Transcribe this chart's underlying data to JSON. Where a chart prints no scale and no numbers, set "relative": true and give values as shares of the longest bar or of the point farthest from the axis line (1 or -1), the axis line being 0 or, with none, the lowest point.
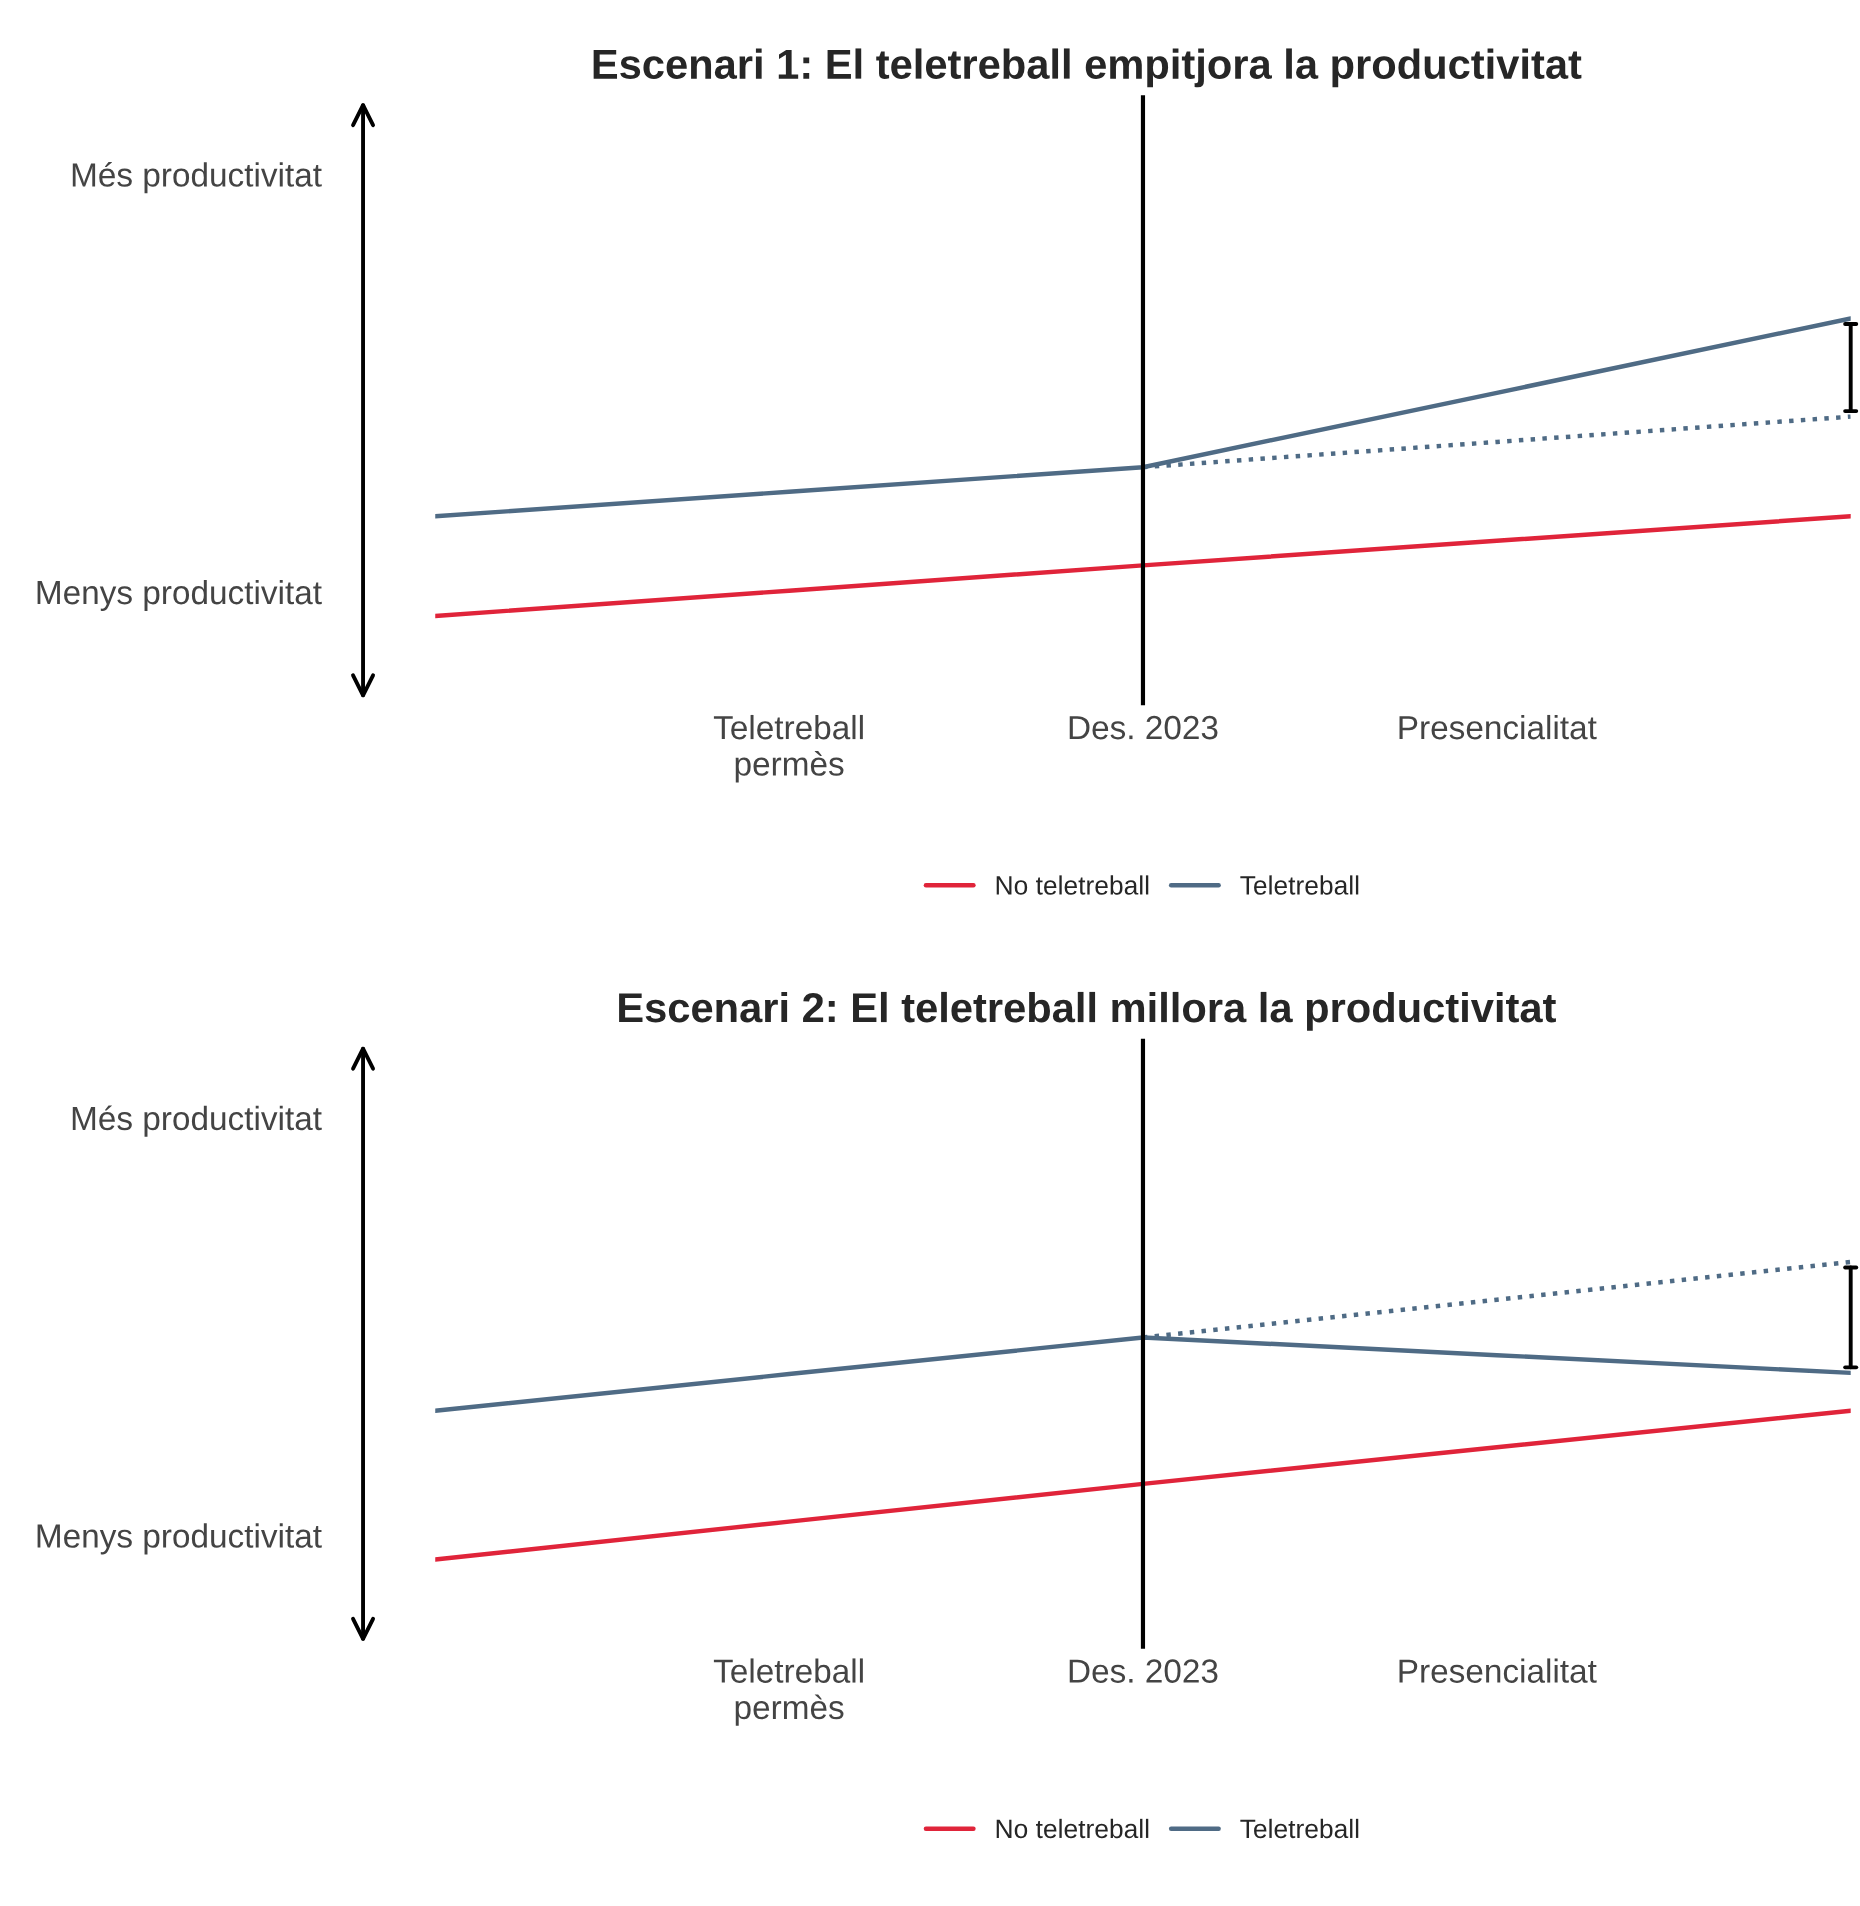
{
  "chart_data": [
    {
      "type": "line",
      "title": "Escenari 1: El teletreball empitjora la productivitat",
      "relative": true,
      "categories": [
        null,
        "Teletreball\npermès",
        "Des. 2023",
        "Presencialitat",
        null
      ],
      "grid": false,
      "legend": "bottom",
      "series": [
        {
          "name": "No teletreball",
          "color": "#e0243a",
          "values": [
            0,
            0.085,
            0.17,
            0.2525,
            0.335
          ]
        },
        {
          "name": "Teletreball",
          "color": "#4f6b85",
          "values": [
            0.335,
            0.4175,
            0.5,
            0.75,
            1
          ]
        },
        {
          "color": "#4f6b85",
          "values": [
            null,
            null,
            0.5,
            0.585,
            0.67
          ],
          "line_style": "dotted"
        }
      ],
      "ref_lines": [
        {
          "axis": "x",
          "value": "Des. 2023",
          "color": "#000000"
        }
      ],
      "annotations": [
        "Més productivitat",
        "Menys productivitat"
      ]
    },
    {
      "type": "line",
      "title": "Escenari 2: El teletreball millora la productivitat",
      "relative": true,
      "categories": [
        null,
        "Teletreball\npermès",
        "Des. 2023",
        "Presencialitat",
        null
      ],
      "grid": false,
      "legend": "bottom",
      "series": [
        {
          "name": "No teletreball",
          "color": "#e0243a",
          "values": [
            0,
            0.127,
            0.254,
            0.377,
            0.5
          ]
        },
        {
          "name": "Teletreball",
          "color": "#4f6b85",
          "values": [
            0.5,
            0.623,
            0.746,
            0.6865,
            0.627
          ]
        },
        {
          "color": "#4f6b85",
          "values": [
            null,
            null,
            0.746,
            0.873,
            1.0
          ],
          "line_style": "dotted"
        }
      ],
      "ref_lines": [
        {
          "axis": "x",
          "value": "Des. 2023",
          "color": "#000000"
        }
      ],
      "annotations": [
        "Més productivitat",
        "Menys productivitat"
      ]
    }
  ]
}
